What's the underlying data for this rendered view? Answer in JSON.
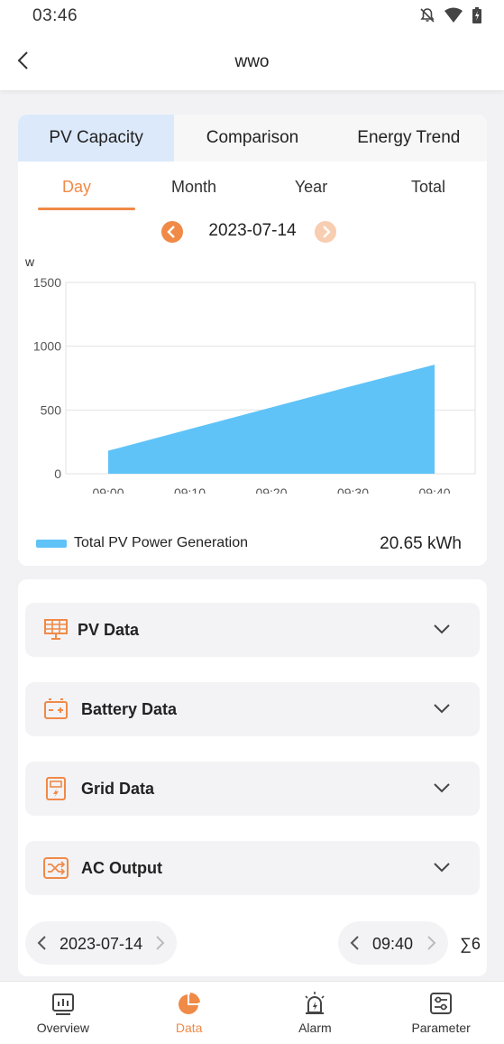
{
  "status_bar": {
    "time": "03:46"
  },
  "header": {
    "title": "wwo"
  },
  "main_tabs": [
    {
      "label": "PV Capacity",
      "active": true
    },
    {
      "label": "Comparison",
      "active": false
    },
    {
      "label": "Energy Trend",
      "active": false
    }
  ],
  "period_tabs": [
    {
      "label": "Day",
      "active": true
    },
    {
      "label": "Month",
      "active": false
    },
    {
      "label": "Year",
      "active": false
    },
    {
      "label": "Total",
      "active": false
    }
  ],
  "date_nav": {
    "date": "2023-07-14"
  },
  "chart_data": {
    "type": "area",
    "ylabel": "w",
    "ylim": [
      0,
      1500
    ],
    "yticks": [
      "1500",
      "1000",
      "500",
      "0"
    ],
    "x": [
      "09:00",
      "09:10",
      "09:20",
      "09:30",
      "09:40"
    ],
    "series": [
      {
        "name": "Total PV Power Generation",
        "values": [
          180,
          350,
          520,
          690,
          855
        ],
        "color": "#5fc3f8"
      }
    ],
    "grid": true
  },
  "legend": {
    "label": "Total PV Power Generation",
    "total": "20.65 kWh"
  },
  "sections": [
    {
      "label": "PV Data",
      "icon": "solar-panel-icon"
    },
    {
      "label": "Battery Data",
      "icon": "battery-icon"
    },
    {
      "label": "Grid Data",
      "icon": "grid-tower-icon"
    },
    {
      "label": "AC Output",
      "icon": "ac-output-icon"
    }
  ],
  "footer_controls": {
    "date": "2023-07-14",
    "time": "09:40",
    "sigma": "∑6"
  },
  "bottom_nav": [
    {
      "label": "Overview",
      "icon": "chart-icon",
      "active": false
    },
    {
      "label": "Data",
      "icon": "pie-chart-icon",
      "active": true
    },
    {
      "label": "Alarm",
      "icon": "alarm-icon",
      "active": false
    },
    {
      "label": "Parameter",
      "icon": "sliders-icon",
      "active": false
    }
  ],
  "colors": {
    "accent": "#f08a47",
    "chart_fill": "#5fc3f8",
    "tab_active_bg": "#dce9fb"
  }
}
